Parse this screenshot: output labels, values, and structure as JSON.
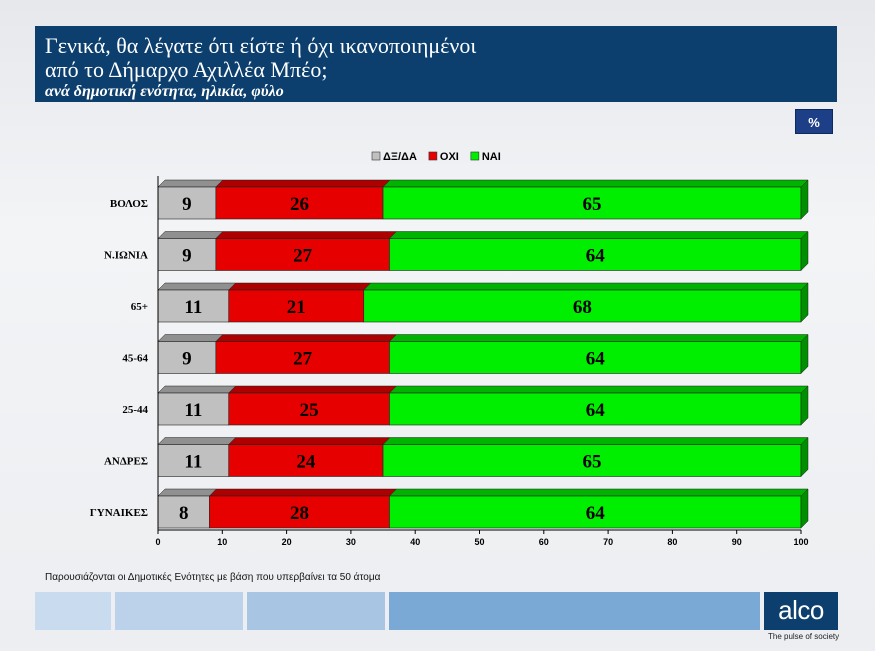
{
  "header": {
    "title_line1": "Γενικά, θα λέγατε ότι είστε ή όχι ικανοποιημένοι",
    "title_line2": "από το Δήμαρχο Αχιλλέα Μπέο;",
    "subtitle": "ανά δημοτική ενότητα, ηλικία, φύλο"
  },
  "unit_badge": "%",
  "chart_data": {
    "type": "bar",
    "orientation": "horizontal",
    "stacked": true,
    "categories": [
      "ΒΟΛΟΣ",
      "Ν.ΙΩΝΙΑ",
      "65+",
      "45-64",
      "25-44",
      "ΑΝΔΡΕΣ",
      "ΓΥΝΑΙΚΕΣ"
    ],
    "series": [
      {
        "name": "ΔΞ/ΔΑ",
        "color": "#c0c0c0",
        "values": [
          9,
          9,
          11,
          9,
          11,
          11,
          8
        ]
      },
      {
        "name": "ΟΧΙ",
        "color": "#e60000",
        "values": [
          26,
          27,
          21,
          27,
          25,
          24,
          28
        ]
      },
      {
        "name": "ΝΑΙ",
        "color": "#00ee00",
        "values": [
          65,
          64,
          68,
          64,
          64,
          65,
          64
        ]
      }
    ],
    "xlim": [
      0,
      100
    ],
    "xticks": [
      0,
      10,
      20,
      30,
      40,
      50,
      60,
      70,
      80,
      90,
      100
    ],
    "legend_position": "top-center",
    "grid": false
  },
  "footnote": "Παρουσιάζονται οι Δημοτικές Ενότητες  με βάση που υπερβαίνει τα 50 άτομα",
  "logo": {
    "text": "alco",
    "tagline": "The pulse of society"
  }
}
